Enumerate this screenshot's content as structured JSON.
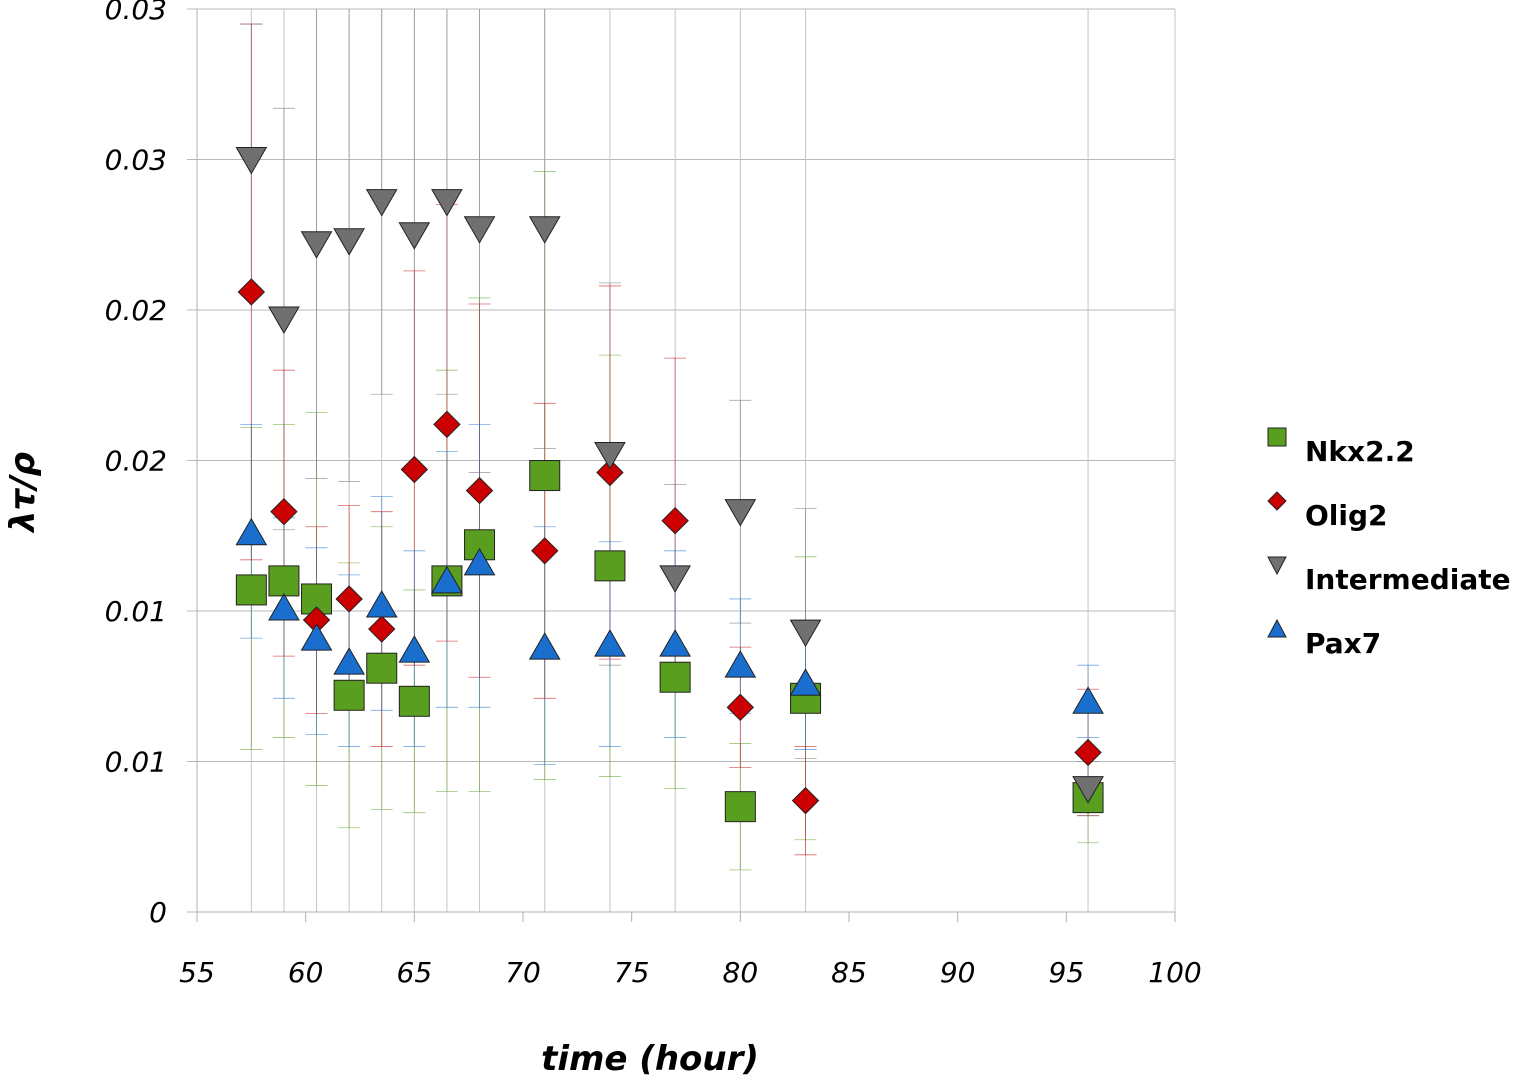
{
  "chart_data": {
    "type": "scatter",
    "xlabel": "time (hour)",
    "ylabel": "λτ/ρ",
    "xlim": [
      55,
      100
    ],
    "ylim": [
      0,
      0.03
    ],
    "x_ticks": [
      55,
      60,
      65,
      70,
      75,
      80,
      85,
      90,
      95,
      100
    ],
    "x_tick_labels": [
      "55",
      "60",
      "65",
      "70",
      "75",
      "80",
      "85",
      "90",
      "95",
      "100"
    ],
    "y_ticks": [
      0,
      0.005,
      0.01,
      0.015,
      0.02,
      0.025,
      0.03
    ],
    "y_tick_labels": [
      "0",
      "0.01",
      "0.01",
      "0.02",
      "0.02",
      "0.03",
      "0.03"
    ],
    "grid": "horizontal and vertical",
    "legend_position": "right",
    "series": [
      {
        "name": "Nkx2.2",
        "marker": "square",
        "color": "#5a9e1f",
        "points": [
          {
            "x": 57.5,
            "y": 0.0107,
            "err_lo": 0.0054,
            "err_hi": 0.0161
          },
          {
            "x": 59,
            "y": 0.011,
            "err_lo": 0.0058,
            "err_hi": 0.0162
          },
          {
            "x": 60.5,
            "y": 0.0104,
            "err_lo": 0.0042,
            "err_hi": 0.0166
          },
          {
            "x": 62,
            "y": 0.0072,
            "err_lo": 0.0028,
            "err_hi": 0.0116
          },
          {
            "x": 63.5,
            "y": 0.0081,
            "err_lo": 0.0034,
            "err_hi": 0.0128
          },
          {
            "x": 65,
            "y": 0.007,
            "err_lo": 0.0033,
            "err_hi": 0.0107
          },
          {
            "x": 66.5,
            "y": 0.011,
            "err_lo": 0.004,
            "err_hi": 0.018
          },
          {
            "x": 68,
            "y": 0.0122,
            "err_lo": 0.004,
            "err_hi": 0.0204
          },
          {
            "x": 71,
            "y": 0.0145,
            "err_lo": 0.0044,
            "err_hi": 0.0246
          },
          {
            "x": 74,
            "y": 0.0115,
            "err_lo": 0.0045,
            "err_hi": 0.0185
          },
          {
            "x": 77,
            "y": 0.0078,
            "err_lo": 0.0041,
            "err_hi": 0.0115
          },
          {
            "x": 80,
            "y": 0.0035,
            "err_lo": 0.0014,
            "err_hi": 0.0056
          },
          {
            "x": 83,
            "y": 0.0071,
            "err_lo": 0.0024,
            "err_hi": 0.0118
          },
          {
            "x": 96,
            "y": 0.0038,
            "err_lo": 0.0023,
            "err_hi": 0.0053
          }
        ]
      },
      {
        "name": "Olig2",
        "marker": "diamond",
        "color": "#cc0000",
        "points": [
          {
            "x": 57.5,
            "y": 0.0206,
            "err_lo": 0.0117,
            "err_hi": 0.0295
          },
          {
            "x": 59,
            "y": 0.0133,
            "err_lo": 0.0085,
            "err_hi": 0.018
          },
          {
            "x": 60.5,
            "y": 0.0097,
            "err_lo": 0.0066,
            "err_hi": 0.0128
          },
          {
            "x": 62,
            "y": 0.0104,
            "err_lo": 0.0073,
            "err_hi": 0.0135
          },
          {
            "x": 63.5,
            "y": 0.0094,
            "err_lo": 0.0055,
            "err_hi": 0.0133
          },
          {
            "x": 65,
            "y": 0.0147,
            "err_lo": 0.0082,
            "err_hi": 0.0213
          },
          {
            "x": 66.5,
            "y": 0.0162,
            "err_lo": 0.009,
            "err_hi": 0.0235
          },
          {
            "x": 68,
            "y": 0.014,
            "err_lo": 0.0078,
            "err_hi": 0.0202
          },
          {
            "x": 71,
            "y": 0.012,
            "err_lo": 0.0071,
            "err_hi": 0.0169
          },
          {
            "x": 74,
            "y": 0.0146,
            "err_lo": 0.0084,
            "err_hi": 0.0208
          },
          {
            "x": 77,
            "y": 0.013,
            "err_lo": 0.0077,
            "err_hi": 0.0184
          },
          {
            "x": 80,
            "y": 0.0068,
            "err_lo": 0.0048,
            "err_hi": 0.0088
          },
          {
            "x": 83,
            "y": 0.0037,
            "err_lo": 0.0019,
            "err_hi": 0.0055
          },
          {
            "x": 96,
            "y": 0.0053,
            "err_lo": 0.0032,
            "err_hi": 0.0074
          }
        ]
      },
      {
        "name": "Intermediate",
        "marker": "triangle-down",
        "color": "#707070",
        "points": [
          {
            "x": 57.5,
            "y": 0.025,
            "err_lo": 0.0205,
            "err_hi": 0.0295
          },
          {
            "x": 59,
            "y": 0.0197,
            "err_lo": 0.0127,
            "err_hi": 0.0267
          },
          {
            "x": 60.5,
            "y": 0.0222,
            "err_lo": 0.0144,
            "err_hi": 0.03
          },
          {
            "x": 62,
            "y": 0.0223,
            "err_lo": 0.0143,
            "err_hi": 0.03
          },
          {
            "x": 63.5,
            "y": 0.0236,
            "err_lo": 0.0172,
            "err_hi": 0.03
          },
          {
            "x": 65,
            "y": 0.0225,
            "err_lo": 0.0147,
            "err_hi": 0.03
          },
          {
            "x": 66.5,
            "y": 0.0236,
            "err_lo": 0.0172,
            "err_hi": 0.03
          },
          {
            "x": 68,
            "y": 0.0227,
            "err_lo": 0.0146,
            "err_hi": 0.03
          },
          {
            "x": 71,
            "y": 0.0227,
            "err_lo": 0.0154,
            "err_hi": 0.03
          },
          {
            "x": 74,
            "y": 0.0152,
            "err_lo": 0.0082,
            "err_hi": 0.0209
          },
          {
            "x": 77,
            "y": 0.0111,
            "err_lo": 0.008,
            "err_hi": 0.0142
          },
          {
            "x": 80,
            "y": 0.0133,
            "err_lo": 0.0096,
            "err_hi": 0.017
          },
          {
            "x": 83,
            "y": 0.0093,
            "err_lo": 0.0051,
            "err_hi": 0.0134
          },
          {
            "x": 96,
            "y": 0.0041,
            "err_lo": 0.0032,
            "err_hi": 0.005
          }
        ]
      },
      {
        "name": "Pax7",
        "marker": "triangle-up",
        "color": "#1a6fce",
        "points": [
          {
            "x": 57.5,
            "y": 0.0126,
            "err_lo": 0.0091,
            "err_hi": 0.0162
          },
          {
            "x": 59,
            "y": 0.0101,
            "err_lo": 0.0071,
            "err_hi": 0.0131
          },
          {
            "x": 60.5,
            "y": 0.0091,
            "err_lo": 0.0059,
            "err_hi": 0.0121
          },
          {
            "x": 62,
            "y": 0.0083,
            "err_lo": 0.0055,
            "err_hi": 0.0112
          },
          {
            "x": 63.5,
            "y": 0.0102,
            "err_lo": 0.0067,
            "err_hi": 0.0138
          },
          {
            "x": 65,
            "y": 0.0087,
            "err_lo": 0.0055,
            "err_hi": 0.012
          },
          {
            "x": 66.5,
            "y": 0.011,
            "err_lo": 0.0068,
            "err_hi": 0.0153
          },
          {
            "x": 68,
            "y": 0.0116,
            "err_lo": 0.0068,
            "err_hi": 0.0162
          },
          {
            "x": 71,
            "y": 0.0088,
            "err_lo": 0.0049,
            "err_hi": 0.0128
          },
          {
            "x": 74,
            "y": 0.0089,
            "err_lo": 0.0055,
            "err_hi": 0.0123
          },
          {
            "x": 77,
            "y": 0.0089,
            "err_lo": 0.0058,
            "err_hi": 0.012
          },
          {
            "x": 80,
            "y": 0.0082,
            "err_lo": 0.0066,
            "err_hi": 0.0104
          },
          {
            "x": 83,
            "y": 0.0076,
            "err_lo": 0.0054,
            "err_hi": 0.0097
          },
          {
            "x": 96,
            "y": 0.007,
            "err_lo": 0.0058,
            "err_hi": 0.0082
          }
        ]
      }
    ]
  }
}
